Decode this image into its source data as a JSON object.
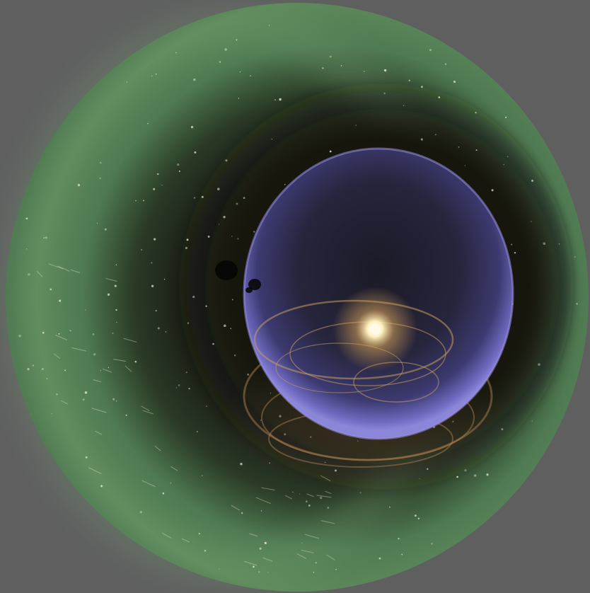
{
  "colors": {
    "background": "#5f5f60",
    "outer_ring": "#4f7a52",
    "outer_ring_light": "#6e9a6b",
    "dark_void": "#15140e",
    "inner_sphere": "#3a3a78",
    "inner_sphere_rim": "#8c86d8",
    "core_glow": "#fff2c0",
    "core_halo": "#d9a45a",
    "dust_trails": "#b88a55",
    "stars": "#e8e6d0"
  },
  "icons": {
    "core": "bright-star-icon",
    "blob": "dark-cloud-icon"
  }
}
